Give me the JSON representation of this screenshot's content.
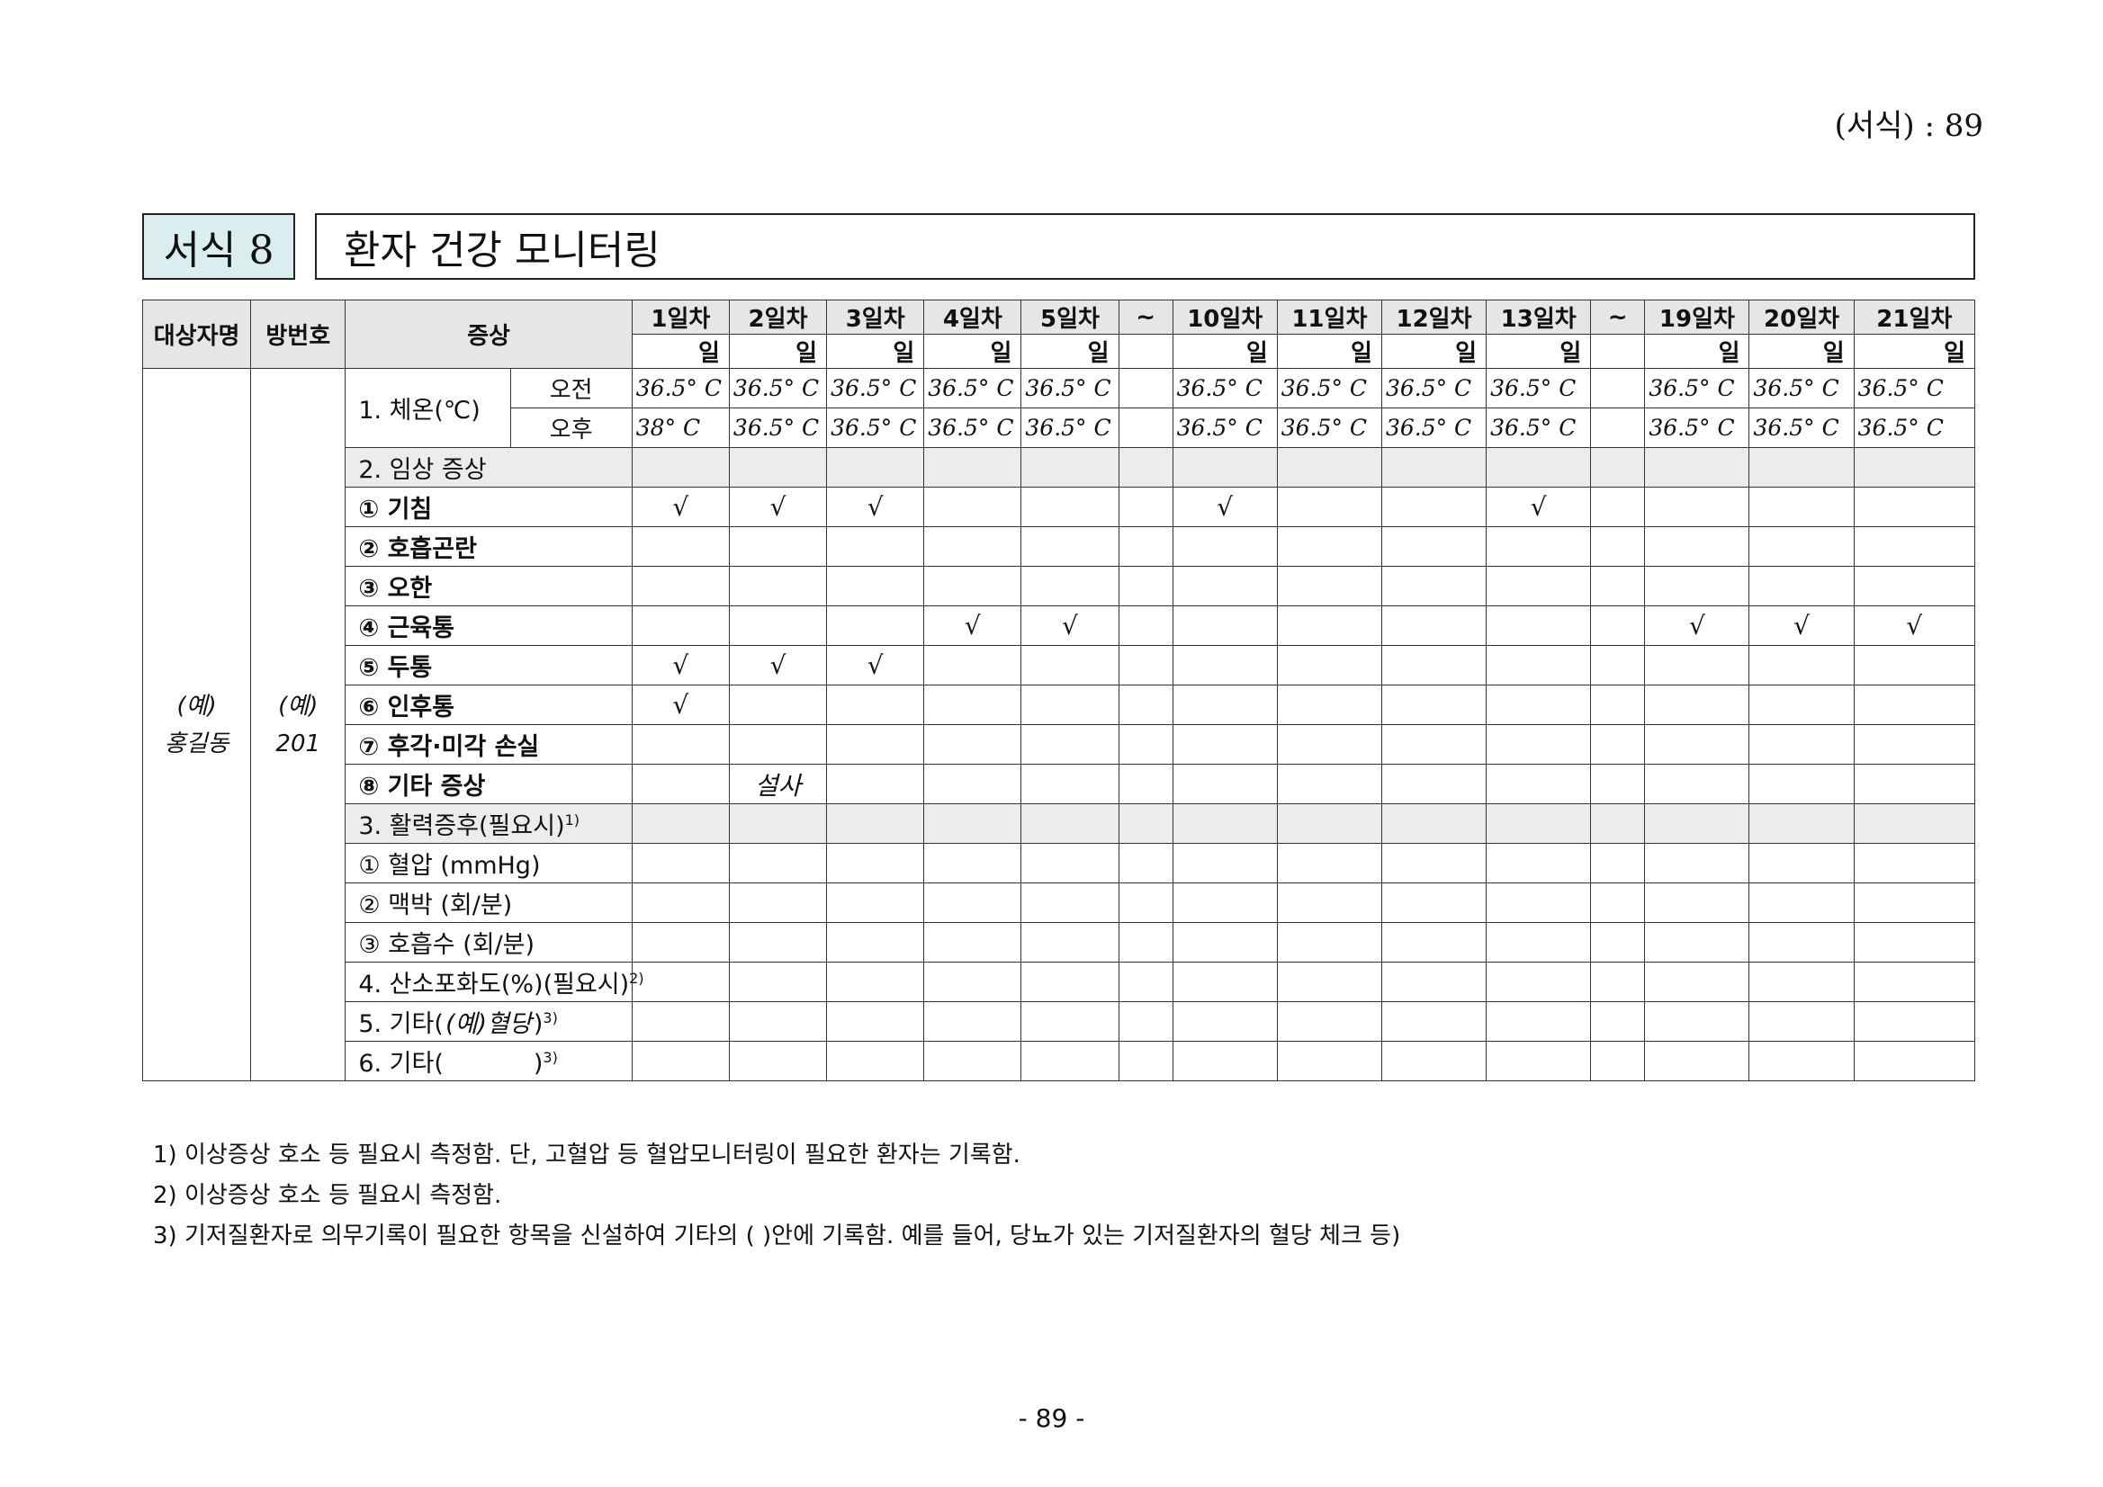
{
  "header": {
    "page_label": "(서식) : 89"
  },
  "form": {
    "tag": "서식 8",
    "title": "환자 건강 모니터링"
  },
  "table": {
    "col_name": "대상자명",
    "col_room": "방번호",
    "col_symptom": "증상",
    "days": [
      "1일차",
      "2일차",
      "3일차",
      "4일차",
      "5일차",
      "~",
      "10일차",
      "11일차",
      "12일차",
      "13일차",
      "~",
      "19일차",
      "20일차",
      "21일차"
    ],
    "day_unit": "일",
    "tilde": "~",
    "patient_name_ex": "(예)",
    "patient_name": "홍길동",
    "room_ex": "(예)",
    "room": "201",
    "temp_label": "1. 체온(℃)",
    "am_label": "오전",
    "pm_label": "오후",
    "am_values": [
      "36.5° C",
      "36.5° C",
      "36.5° C",
      "36.5° C",
      "36.5° C",
      "",
      "36.5° C",
      "36.5° C",
      "36.5° C",
      "36.5° C",
      "",
      "36.5° C",
      "36.5° C",
      "36.5° C"
    ],
    "pm_values": [
      "38° C",
      "36.5° C",
      "36.5° C",
      "36.5° C",
      "36.5° C",
      "",
      "36.5° C",
      "36.5° C",
      "36.5° C",
      "36.5° C",
      "",
      "36.5° C",
      "36.5° C",
      "36.5° C"
    ],
    "check_mark": "√",
    "rows": [
      {
        "label": "2. 임상 증상",
        "shade": true,
        "bold": false,
        "values": [
          "",
          "",
          "",
          "",
          "",
          "",
          "",
          "",
          "",
          "",
          "",
          "",
          "",
          ""
        ]
      },
      {
        "label": "① 기침",
        "shade": false,
        "bold": true,
        "values": [
          "√",
          "√",
          "√",
          "",
          "",
          "",
          "√",
          "",
          "",
          "√",
          "",
          "",
          "",
          ""
        ]
      },
      {
        "label": "② 호흡곤란",
        "shade": false,
        "bold": true,
        "values": [
          "",
          "",
          "",
          "",
          "",
          "",
          "",
          "",
          "",
          "",
          "",
          "",
          "",
          ""
        ]
      },
      {
        "label": "③ 오한",
        "shade": false,
        "bold": true,
        "values": [
          "",
          "",
          "",
          "",
          "",
          "",
          "",
          "",
          "",
          "",
          "",
          "",
          "",
          ""
        ]
      },
      {
        "label": "④ 근육통",
        "shade": false,
        "bold": true,
        "values": [
          "",
          "",
          "",
          "√",
          "√",
          "",
          "",
          "",
          "",
          "",
          "",
          "√",
          "√",
          "√"
        ]
      },
      {
        "label": "⑤ 두통",
        "shade": false,
        "bold": true,
        "values": [
          "√",
          "√",
          "√",
          "",
          "",
          "",
          "",
          "",
          "",
          "",
          "",
          "",
          "",
          ""
        ]
      },
      {
        "label": "⑥ 인후통",
        "shade": false,
        "bold": true,
        "values": [
          "√",
          "",
          "",
          "",
          "",
          "",
          "",
          "",
          "",
          "",
          "",
          "",
          "",
          ""
        ]
      },
      {
        "label": "⑦ 후각·미각 손실",
        "shade": false,
        "bold": true,
        "values": [
          "",
          "",
          "",
          "",
          "",
          "",
          "",
          "",
          "",
          "",
          "",
          "",
          "",
          ""
        ]
      },
      {
        "label": "⑧ 기타 증상",
        "shade": false,
        "bold": true,
        "values": [
          "",
          "설사",
          "",
          "",
          "",
          "",
          "",
          "",
          "",
          "",
          "",
          "",
          "",
          ""
        ]
      },
      {
        "label": "3. 활력증후(필요시)",
        "sup": "1)",
        "shade": true,
        "bold": false,
        "values": [
          "",
          "",
          "",
          "",
          "",
          "",
          "",
          "",
          "",
          "",
          "",
          "",
          "",
          ""
        ]
      },
      {
        "label": "① 혈압 (mmHg)",
        "shade": false,
        "bold": false,
        "values": [
          "",
          "",
          "",
          "",
          "",
          "",
          "",
          "",
          "",
          "",
          "",
          "",
          "",
          ""
        ]
      },
      {
        "label": "② 맥박 (회/분)",
        "shade": false,
        "bold": false,
        "values": [
          "",
          "",
          "",
          "",
          "",
          "",
          "",
          "",
          "",
          "",
          "",
          "",
          "",
          ""
        ]
      },
      {
        "label": "③ 호흡수 (회/분)",
        "shade": false,
        "bold": false,
        "values": [
          "",
          "",
          "",
          "",
          "",
          "",
          "",
          "",
          "",
          "",
          "",
          "",
          "",
          ""
        ]
      },
      {
        "label": "4. 산소포화도(%)(필요시)",
        "sup": "2)",
        "shade": false,
        "bold": false,
        "values": [
          "",
          "",
          "",
          "",
          "",
          "",
          "",
          "",
          "",
          "",
          "",
          "",
          "",
          ""
        ]
      },
      {
        "label": "5. 기타(",
        "label_italic": "(예)혈당",
        "label_end": ")",
        "sup": "3)",
        "shade": false,
        "bold": false,
        "values": [
          "",
          "",
          "",
          "",
          "",
          "",
          "",
          "",
          "",
          "",
          "",
          "",
          "",
          ""
        ]
      },
      {
        "label": "6. 기타(",
        "label_italic": "",
        "label_end": ")",
        "sup": "3)",
        "shade": false,
        "bold": false,
        "values": [
          "",
          "",
          "",
          "",
          "",
          "",
          "",
          "",
          "",
          "",
          "",
          "",
          "",
          ""
        ]
      }
    ]
  },
  "notes": [
    "1) 이상증상 호소 등 필요시 측정함. 단, 고혈압 등 혈압모니터링이 필요한 환자는 기록함.",
    "2) 이상증상 호소 등 필요시 측정함.",
    "3) 기저질환자로 의무기록이 필요한 항목을 신설하여 기타의 (    )안에 기록함. 예를 들어, 당뇨가 있는 기저질환자의 혈당 체크 등)"
  ],
  "footer": {
    "page_number": "- 89 -"
  }
}
